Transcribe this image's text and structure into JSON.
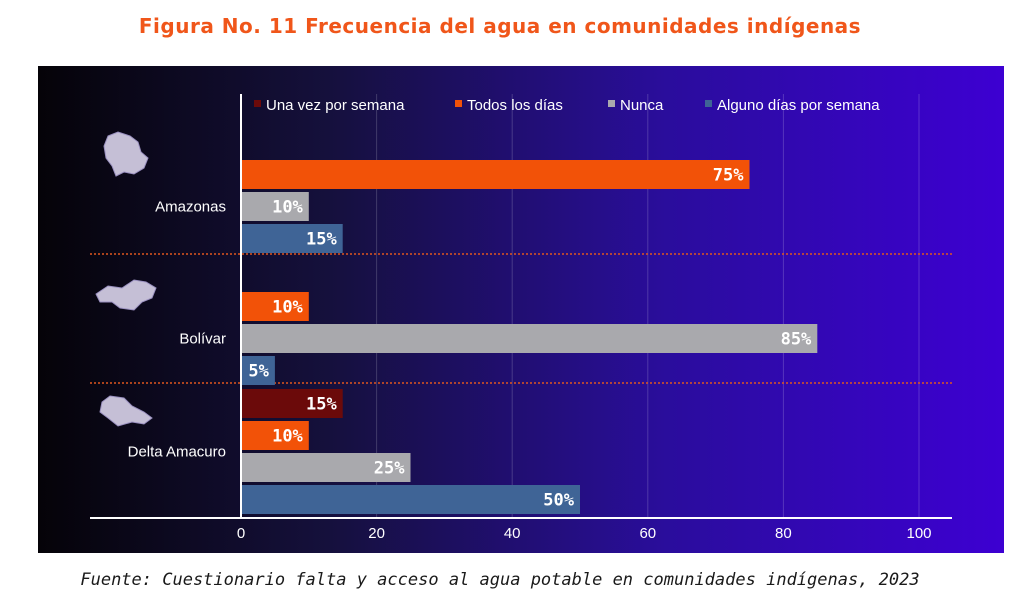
{
  "title": "Figura No. 11 Frecuencia del agua en comunidades indígenas",
  "source": "Fuente: Cuestionario falta y acceso al agua potable en comunidades indígenas, 2023",
  "colors": {
    "Una vez por semana": "#6b0a0a",
    "Todos los días": "#f25208",
    "Nunca": "#a9a9ad",
    "Alguno días por semana": "#3f6496"
  },
  "chart_data": {
    "type": "bar",
    "orientation": "horizontal",
    "title": "Figura No. 11 Frecuencia del agua en comunidades indígenas",
    "xlim": [
      0,
      100
    ],
    "xticks": [
      "0",
      "20",
      "40",
      "60",
      "80",
      "100"
    ],
    "legend": [
      "Una vez por semana",
      "Todos los días",
      "Nunca",
      "Alguno días por semana"
    ],
    "legend_position": "top",
    "grid": true,
    "groups": [
      {
        "name": "Amazonas",
        "bars": [
          {
            "series": "Todos los días",
            "value": 75,
            "label": "75%"
          },
          {
            "series": "Nunca",
            "value": 10,
            "label": "10%"
          },
          {
            "series": "Alguno días por semana",
            "value": 15,
            "label": "15%"
          }
        ]
      },
      {
        "name": "Bolívar",
        "bars": [
          {
            "series": "Todos los días",
            "value": 10,
            "label": "10%"
          },
          {
            "series": "Nunca",
            "value": 85,
            "label": "85%"
          },
          {
            "series": "Alguno días por semana",
            "value": 5,
            "label": "5%"
          }
        ]
      },
      {
        "name": "Delta Amacuro",
        "bars": [
          {
            "series": "Una vez por semana",
            "value": 15,
            "label": "15%"
          },
          {
            "series": "Todos los días",
            "value": 10,
            "label": "10%"
          },
          {
            "series": "Nunca",
            "value": 25,
            "label": "25%"
          },
          {
            "series": "Alguno días por semana",
            "value": 50,
            "label": "50%"
          }
        ]
      }
    ]
  }
}
